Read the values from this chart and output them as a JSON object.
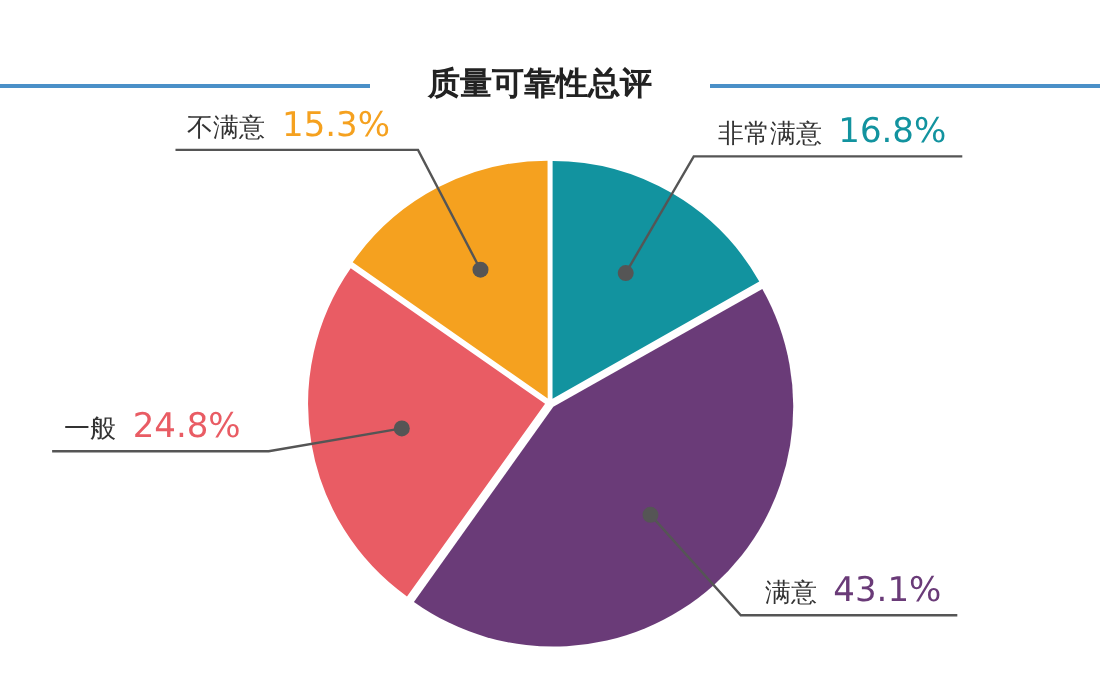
{
  "chart_data": {
    "type": "pie",
    "title": "质量可靠性总评",
    "categories": [
      "非常满意",
      "满意",
      "一般",
      "不满意"
    ],
    "values": [
      16.8,
      43.1,
      24.8,
      15.3
    ],
    "value_labels": [
      "16.8%",
      "43.1%",
      "24.8%",
      "15.3%"
    ],
    "colors": [
      "#12939f",
      "#6a3b78",
      "#e95c64",
      "#f5a11f"
    ],
    "legend": false
  }
}
